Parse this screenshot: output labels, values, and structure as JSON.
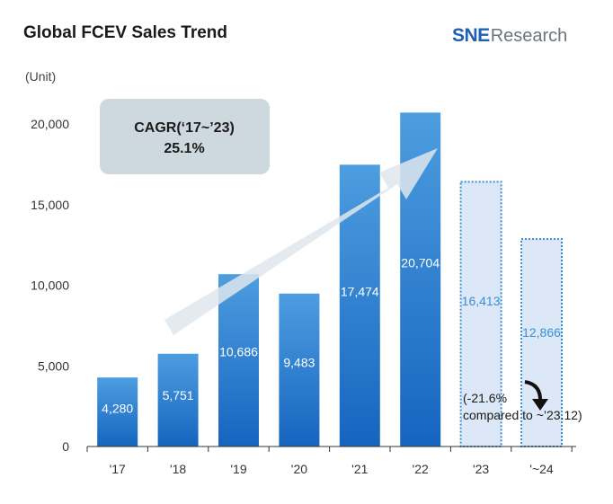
{
  "header": {
    "title": "Global FCEV Sales Trend",
    "logo_main": "SNE",
    "logo_sub": "Research"
  },
  "unit_label": "(Unit)",
  "cagr": {
    "label": "CAGR(‘17~’23)",
    "value": "25.1%"
  },
  "note": {
    "line1": "(-21.6%",
    "line2": "compared to ~’23.12)"
  },
  "colors": {
    "bar_solid_top": "#4d9de0",
    "bar_solid_bottom": "#1565c0",
    "bar_forecast_fill": "#dce7f7",
    "bar_forecast_border": "#3a8fd6",
    "forecast_label": "#3a8fd6",
    "cagr_box": "#ced8df",
    "arrow": "#dfe6ec",
    "axis": "#333333"
  },
  "chart_data": {
    "type": "bar",
    "title": "Global FCEV Sales Trend",
    "ylabel": "(Unit)",
    "ylim": [
      0,
      20000
    ],
    "yticks": [
      0,
      5000,
      10000,
      15000,
      20000
    ],
    "ytick_labels": [
      "0",
      "5,000",
      "10,000",
      "15,000",
      "20,000"
    ],
    "categories": [
      "'17",
      "'18",
      "'19",
      "'20",
      "'21",
      "'22",
      "'23",
      "'~24"
    ],
    "values": [
      4280,
      5751,
      10686,
      9483,
      17474,
      20704,
      16413,
      12866
    ],
    "value_labels": [
      "4,280",
      "5,751",
      "10,686",
      "9,483",
      "17,474",
      "20,704",
      "16,413",
      "12,866"
    ],
    "forecast": [
      false,
      false,
      false,
      false,
      false,
      false,
      true,
      true
    ],
    "grid": false,
    "legend": "none"
  }
}
